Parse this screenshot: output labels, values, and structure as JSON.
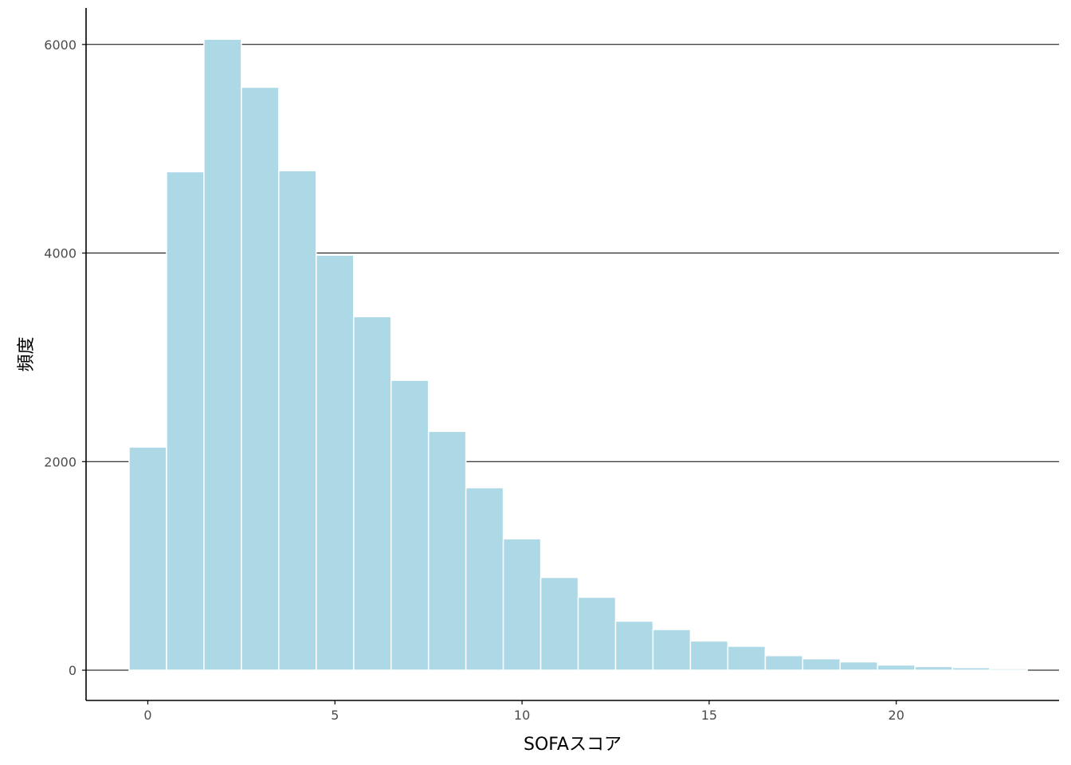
{
  "chart_data": {
    "type": "bar",
    "x": [
      0,
      1,
      2,
      3,
      4,
      5,
      6,
      7,
      8,
      9,
      10,
      11,
      12,
      13,
      14,
      15,
      16,
      17,
      18,
      19,
      20,
      21,
      22,
      23
    ],
    "values": [
      2140,
      4780,
      6050,
      5590,
      4790,
      3980,
      3390,
      2780,
      2290,
      1750,
      1260,
      890,
      700,
      470,
      390,
      280,
      230,
      140,
      110,
      80,
      50,
      35,
      25,
      15
    ],
    "xlabel": "SOFAスコア",
    "ylabel": "頻度",
    "x_ticks": [
      "0",
      "5",
      "10",
      "15",
      "20"
    ],
    "y_ticks": [
      "0",
      "2000",
      "4000",
      "6000"
    ],
    "xlim": [
      -1.65,
      24.35
    ],
    "ylim": [
      -290,
      6350
    ],
    "grid": "horizontal major",
    "bar_color": "#add8e6",
    "bar_edge_color": "#ffffff"
  }
}
